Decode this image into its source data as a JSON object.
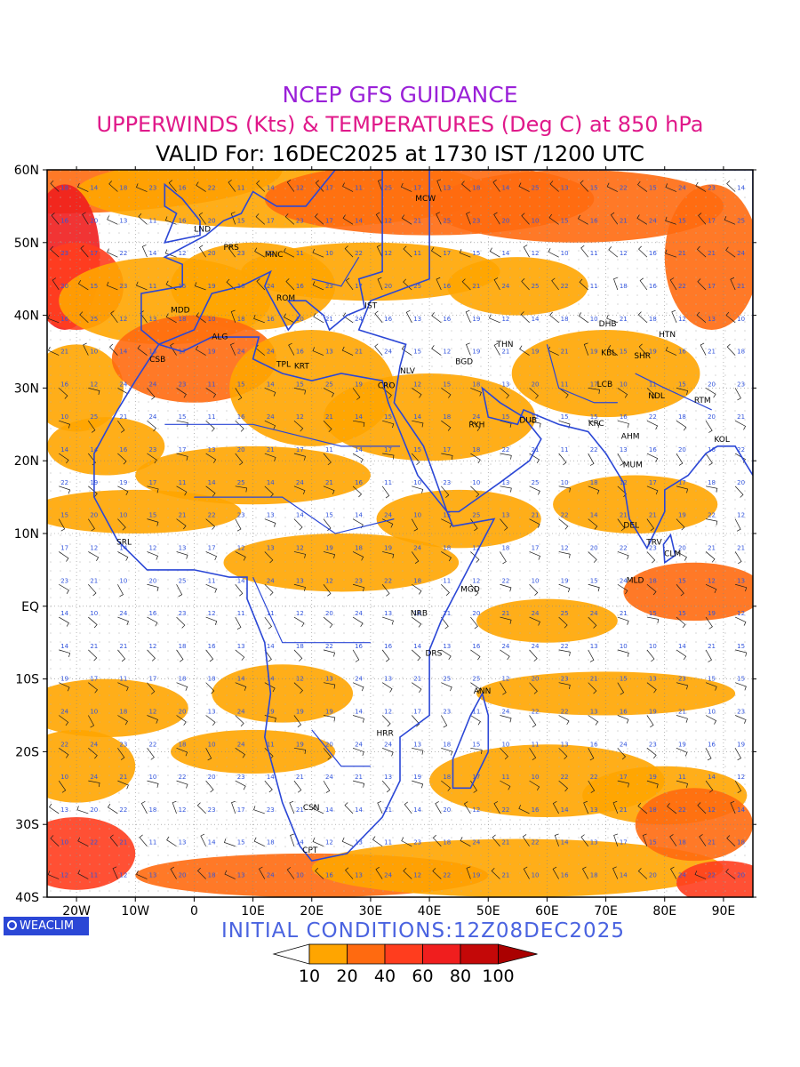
{
  "titles": {
    "line1": "NCEP GFS GUIDANCE",
    "line2": "UPPERWINDS (Kts) & TEMPERATURES (Deg C) at 850 hPa",
    "line3": "VALID For: 16DEC2025 at 1730 IST /1200 UTC"
  },
  "colors": {
    "title1": "#9a20d8",
    "title2": "#e0198a",
    "coast": "#2b47d6",
    "shade_10": "#ffa500",
    "shade_20": "#ff6a10",
    "shade_40": "#ff3d1e",
    "shade_60": "#f01e1e",
    "shade_80": "#c40808",
    "shade_100": "#aa0000"
  },
  "map": {
    "lon_ticks": [
      "20W",
      "10W",
      "0",
      "10E",
      "20E",
      "30E",
      "40E",
      "50E",
      "60E",
      "70E",
      "80E",
      "90E"
    ],
    "lat_ticks": [
      "60N",
      "50N",
      "40N",
      "30N",
      "20N",
      "10N",
      "EQ",
      "10S",
      "20S",
      "30S",
      "40S"
    ],
    "extent": {
      "lon_min": -25,
      "lon_max": 95,
      "lat_min": -40,
      "lat_max": 60
    },
    "stations": [
      {
        "code": "MCW",
        "lon": 37.6,
        "lat": 55.7
      },
      {
        "code": "LND",
        "lon": 0.0,
        "lat": 51.5
      },
      {
        "code": "PRS",
        "lon": 5.0,
        "lat": 49.0
      },
      {
        "code": "MNC",
        "lon": 12.0,
        "lat": 48.0
      },
      {
        "code": "ROM",
        "lon": 14.0,
        "lat": 42.0
      },
      {
        "code": "IST",
        "lon": 29.0,
        "lat": 41.0
      },
      {
        "code": "MDD",
        "lon": -4.0,
        "lat": 40.4
      },
      {
        "code": "ALG",
        "lon": 3.0,
        "lat": 36.7
      },
      {
        "code": "CSB",
        "lon": -7.6,
        "lat": 33.6
      },
      {
        "code": "TPL",
        "lon": 14.0,
        "lat": 32.9
      },
      {
        "code": "KRT",
        "lon": 17.0,
        "lat": 32.7
      },
      {
        "code": "CRO",
        "lon": 31.2,
        "lat": 30.0
      },
      {
        "code": "NLV",
        "lon": 35.0,
        "lat": 32.0
      },
      {
        "code": "BGD",
        "lon": 44.4,
        "lat": 33.3
      },
      {
        "code": "THN",
        "lon": 51.4,
        "lat": 35.7
      },
      {
        "code": "DHB",
        "lon": 68.8,
        "lat": 38.5
      },
      {
        "code": "HTN",
        "lon": 79.0,
        "lat": 37.0
      },
      {
        "code": "KBL",
        "lon": 69.2,
        "lat": 34.5
      },
      {
        "code": "SHR",
        "lon": 74.8,
        "lat": 34.1
      },
      {
        "code": "LCB",
        "lon": 68.5,
        "lat": 30.2
      },
      {
        "code": "NDL",
        "lon": 77.2,
        "lat": 28.6
      },
      {
        "code": "RTM",
        "lon": 85.0,
        "lat": 28.0
      },
      {
        "code": "RYH",
        "lon": 46.7,
        "lat": 24.6
      },
      {
        "code": "DUB",
        "lon": 55.3,
        "lat": 25.2
      },
      {
        "code": "KRC",
        "lon": 67.0,
        "lat": 24.8
      },
      {
        "code": "AHM",
        "lon": 72.6,
        "lat": 23.0
      },
      {
        "code": "KOL",
        "lon": 88.4,
        "lat": 22.6
      },
      {
        "code": "MUM",
        "lon": 72.9,
        "lat": 19.1
      },
      {
        "code": "SRL",
        "lon": -13.2,
        "lat": 8.5
      },
      {
        "code": "DEL",
        "lon": 73.0,
        "lat": 10.8
      },
      {
        "code": "TRV",
        "lon": 76.9,
        "lat": 8.5
      },
      {
        "code": "CLM",
        "lon": 79.9,
        "lat": 6.9
      },
      {
        "code": "MLD",
        "lon": 73.5,
        "lat": 3.2
      },
      {
        "code": "MGD",
        "lon": 45.3,
        "lat": 2.0
      },
      {
        "code": "NRB",
        "lon": 36.8,
        "lat": -1.3
      },
      {
        "code": "DRS",
        "lon": 39.3,
        "lat": -6.8
      },
      {
        "code": "ANN",
        "lon": 47.5,
        "lat": -12.0
      },
      {
        "code": "HRR",
        "lon": 31.0,
        "lat": -17.8
      },
      {
        "code": "CSN",
        "lon": 18.5,
        "lat": -28.0
      },
      {
        "code": "CPT",
        "lon": 18.4,
        "lat": -33.9
      }
    ]
  },
  "watermark": "WEACLIM",
  "initial_conditions": "INITIAL CONDITIONS:12Z08DEC2025",
  "colorbar": {
    "labels": [
      "10",
      "20",
      "40",
      "60",
      "80",
      "100"
    ]
  }
}
